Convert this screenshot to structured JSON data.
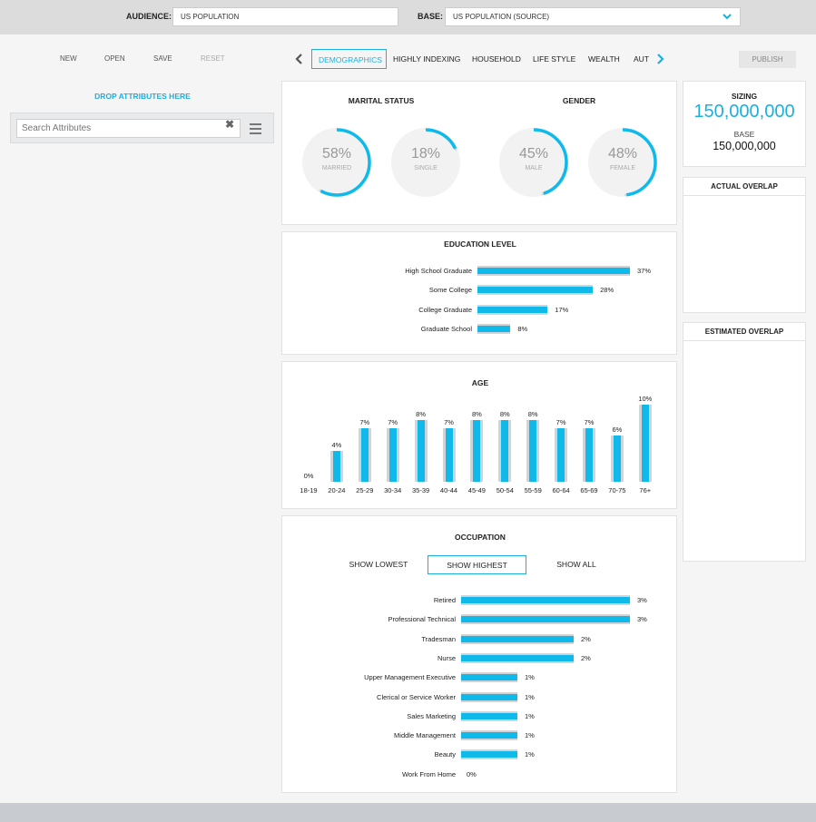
{
  "header": {
    "audience_label": "AUDIENCE:",
    "audience_value": "US POPULATION",
    "base_label": "BASE:",
    "base_value": "US POPULATION (SOURCE)"
  },
  "toolbar": {
    "new": "NEW",
    "open": "OPEN",
    "save": "SAVE",
    "reset": "RESET",
    "publish": "PUBLISH"
  },
  "tabs": [
    "DEMOGRAPHICS",
    "HIGHLY INDEXING",
    "HOUSEHOLD",
    "LIFE STYLE",
    "WEALTH",
    "AUT"
  ],
  "sidebar": {
    "drop_label": "DROP ATTRIBUTES HERE",
    "search_placeholder": "Search Attributes"
  },
  "marital": {
    "title": "MARITAL STATUS",
    "items": [
      {
        "value": 58,
        "pct": "58%",
        "label": "MARRIED"
      },
      {
        "value": 18,
        "pct": "18%",
        "label": "SINGLE"
      }
    ]
  },
  "gender": {
    "title": "GENDER",
    "items": [
      {
        "value": 45,
        "pct": "45%",
        "label": "MALE"
      },
      {
        "value": 48,
        "pct": "48%",
        "label": "FEMALE"
      }
    ]
  },
  "colors": {
    "accent": "#0fbaea",
    "track": "#cfd4d9"
  },
  "chart_data": [
    {
      "type": "bar",
      "title": "EDUCATION LEVEL",
      "categories": [
        "High School Graduate",
        "Some College",
        "College Graduate",
        "Graduate School"
      ],
      "values": [
        37,
        28,
        17,
        8
      ],
      "labels": [
        "37%",
        "28%",
        "17%",
        "8%"
      ]
    },
    {
      "type": "bar",
      "title": "AGE",
      "categories": [
        "18-19",
        "20-24",
        "25-29",
        "30-34",
        "35-39",
        "40-44",
        "45-49",
        "50-54",
        "55-59",
        "60-64",
        "65-69",
        "70-75",
        "76+"
      ],
      "values": [
        0,
        4,
        7,
        7,
        8,
        7,
        8,
        8,
        8,
        7,
        7,
        6,
        10
      ],
      "labels": [
        "0%",
        "4%",
        "7%",
        "7%",
        "8%",
        "7%",
        "8%",
        "8%",
        "8%",
        "7%",
        "7%",
        "6%",
        "10%"
      ]
    },
    {
      "type": "bar",
      "title": "OCCUPATION",
      "categories": [
        "Retired",
        "Professional Technical",
        "Tradesman",
        "Nurse",
        "Upper Management Executive",
        "Clerical or Service Worker",
        "Sales Marketing",
        "Middle Management",
        "Beauty",
        "Work From Home"
      ],
      "values": [
        3,
        3,
        2,
        2,
        1,
        1,
        1,
        1,
        1,
        0
      ],
      "labels": [
        "3%",
        "3%",
        "2%",
        "2%",
        "1%",
        "1%",
        "1%",
        "1%",
        "1%",
        "0%"
      ]
    }
  ],
  "occupation_filters": [
    "SHOW LOWEST",
    "SHOW HIGHEST",
    "SHOW ALL"
  ],
  "sizing": {
    "title": "SIZING",
    "value": "150,000,000",
    "base_label": "BASE",
    "base_value": "150,000,000"
  },
  "actual_overlap": "ACTUAL OVERLAP",
  "estimated_overlap": "ESTIMATED OVERLAP"
}
